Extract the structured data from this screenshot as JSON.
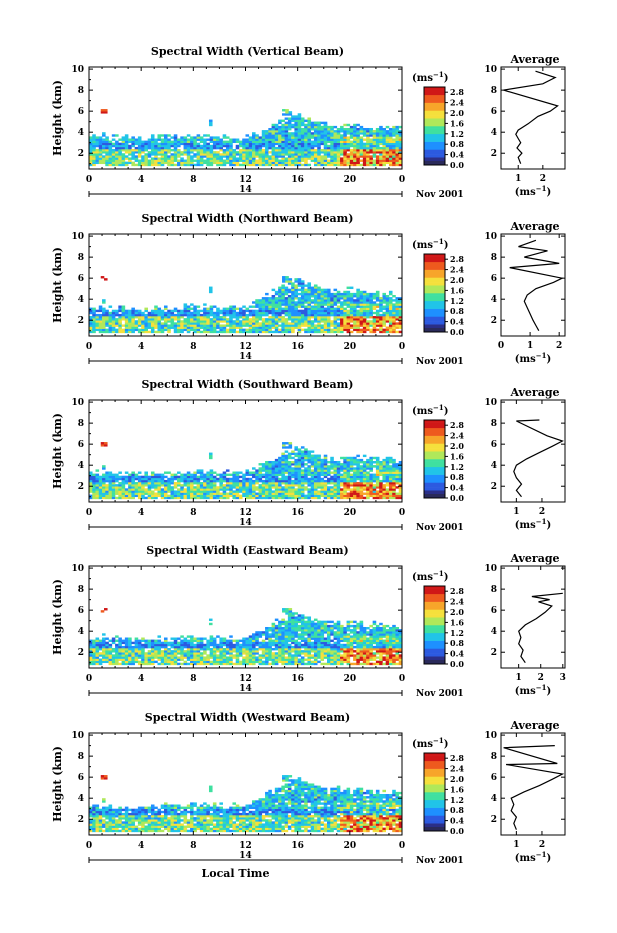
{
  "shared": {
    "time_ticks": [
      0,
      4,
      8,
      12,
      16,
      20,
      0
    ],
    "height_ticks": [
      2,
      4,
      6,
      8,
      10
    ],
    "ylabel": "Height (km)",
    "date_day": "14",
    "date_month": "Nov 2001",
    "xlabel": "Local Time",
    "unit_label": "(ms",
    "unit_exp": "−1",
    "unit_close": ")",
    "avg_title": "Average",
    "colorbar_ticks": [
      "2.8",
      "2.4",
      "2.0",
      "1.6",
      "1.2",
      "0.8",
      "0.4",
      "0.0"
    ],
    "colormap": [
      "#2b2f88",
      "#2c5ae0",
      "#1e90ff",
      "#21c4e8",
      "#3fe0a0",
      "#b0e85a",
      "#f5e03c",
      "#f7a52a",
      "#ee5a1e",
      "#d01717"
    ]
  },
  "chart_data": [
    {
      "type": "heatmap",
      "title": "Spectral Width (Vertical Beam)",
      "xlabel": "Local Time",
      "ylabel": "Height (km)",
      "xlim": [
        0,
        24
      ],
      "ylim": [
        0.5,
        10.2
      ],
      "colorbar_range": [
        0,
        3.0
      ],
      "cloud_top_segments": [
        [
          0,
          3.2
        ],
        [
          4,
          3.0
        ],
        [
          8,
          3.3
        ],
        [
          12,
          3.0
        ],
        [
          14.5,
          4.5
        ],
        [
          16,
          5.3
        ],
        [
          18,
          4.2
        ],
        [
          20,
          4.2
        ],
        [
          24,
          4.0
        ]
      ],
      "avg_profile": {
        "xticks": [
          1,
          2
        ],
        "xlim": [
          0.3,
          2.9
        ],
        "xlabel": "(ms",
        "xlabel_exp": "−1",
        "xlabel_close": ")",
        "points": [
          [
            1.1,
            1.0
          ],
          [
            1.0,
            1.6
          ],
          [
            1.15,
            2.0
          ],
          [
            0.95,
            2.5
          ],
          [
            1.1,
            3.0
          ],
          [
            1.0,
            3.4
          ],
          [
            0.9,
            3.8
          ],
          [
            1.0,
            4.2
          ],
          [
            1.4,
            4.8
          ],
          [
            1.8,
            5.5
          ],
          [
            2.3,
            6.0
          ],
          [
            2.6,
            6.5
          ],
          [
            0.4,
            8.0
          ],
          [
            2.0,
            8.6
          ],
          [
            2.5,
            9.2
          ],
          [
            1.7,
            9.8
          ]
        ]
      }
    },
    {
      "type": "heatmap",
      "title": "Spectral Width (Northward Beam)",
      "xlabel": "Local Time",
      "ylabel": "Height (km)",
      "xlim": [
        0,
        24
      ],
      "ylim": [
        0.5,
        10.2
      ],
      "colorbar_range": [
        0,
        3.0
      ],
      "cloud_top_segments": [
        [
          0,
          2.8
        ],
        [
          4,
          2.7
        ],
        [
          8,
          2.9
        ],
        [
          12,
          2.7
        ],
        [
          14.5,
          4.5
        ],
        [
          16,
          5.5
        ],
        [
          18,
          4.3
        ],
        [
          20,
          4.5
        ],
        [
          24,
          4.0
        ]
      ],
      "avg_profile": {
        "xticks": [
          0,
          1,
          2
        ],
        "xlim": [
          0,
          2.2
        ],
        "xlabel": "(ms",
        "xlabel_exp": "−1",
        "xlabel_close": ")",
        "points": [
          [
            1.3,
            1.0
          ],
          [
            1.2,
            1.5
          ],
          [
            1.1,
            2.0
          ],
          [
            1.0,
            2.6
          ],
          [
            0.9,
            3.2
          ],
          [
            0.8,
            3.8
          ],
          [
            0.9,
            4.4
          ],
          [
            1.2,
            5.0
          ],
          [
            1.8,
            5.6
          ],
          [
            2.1,
            6.0
          ],
          [
            0.3,
            7.0
          ],
          [
            2.0,
            7.4
          ],
          [
            0.8,
            8.0
          ],
          [
            1.6,
            8.6
          ],
          [
            0.6,
            9.0
          ],
          [
            1.2,
            9.6
          ]
        ]
      }
    },
    {
      "type": "heatmap",
      "title": "Spectral Width (Southward Beam)",
      "xlabel": "Local Time",
      "ylabel": "Height (km)",
      "xlim": [
        0,
        24
      ],
      "ylim": [
        0.5,
        10.2
      ],
      "colorbar_range": [
        0,
        3.0
      ],
      "cloud_top_segments": [
        [
          0,
          2.9
        ],
        [
          4,
          2.8
        ],
        [
          8,
          3.0
        ],
        [
          12,
          2.8
        ],
        [
          14.5,
          4.5
        ],
        [
          16,
          5.4
        ],
        [
          18,
          4.2
        ],
        [
          20,
          4.4
        ],
        [
          24,
          4.0
        ]
      ],
      "avg_profile": {
        "xticks": [
          1,
          2
        ],
        "xlim": [
          0.4,
          2.9
        ],
        "xlabel": "(ms",
        "xlabel_exp": "−1",
        "xlabel_close": ")",
        "points": [
          [
            1.2,
            1.0
          ],
          [
            1.0,
            1.6
          ],
          [
            1.2,
            2.2
          ],
          [
            1.0,
            2.8
          ],
          [
            0.9,
            3.4
          ],
          [
            1.0,
            4.0
          ],
          [
            1.4,
            4.6
          ],
          [
            1.9,
            5.2
          ],
          [
            2.4,
            5.8
          ],
          [
            2.8,
            6.3
          ],
          [
            2.2,
            6.8
          ],
          [
            1.0,
            8.2
          ],
          [
            1.9,
            8.3
          ]
        ]
      }
    },
    {
      "type": "heatmap",
      "title": "Spectral Width (Eastward Beam)",
      "xlabel": "Local Time",
      "ylabel": "Height (km)",
      "xlim": [
        0,
        24
      ],
      "ylim": [
        0.5,
        10.2
      ],
      "colorbar_range": [
        0,
        3.0
      ],
      "cloud_top_segments": [
        [
          0,
          2.9
        ],
        [
          4,
          2.8
        ],
        [
          8,
          3.0
        ],
        [
          12,
          2.8
        ],
        [
          14.5,
          4.5
        ],
        [
          16,
          5.4
        ],
        [
          18,
          4.3
        ],
        [
          20,
          4.4
        ],
        [
          24,
          4.0
        ]
      ],
      "avg_profile": {
        "xticks": [
          1,
          2,
          3
        ],
        "xlim": [
          0.2,
          3.1
        ],
        "xlabel": "(ms",
        "xlabel_exp": "−1",
        "xlabel_close": ")",
        "points": [
          [
            1.3,
            1.0
          ],
          [
            1.1,
            1.6
          ],
          [
            1.2,
            2.2
          ],
          [
            1.0,
            2.8
          ],
          [
            1.1,
            3.4
          ],
          [
            1.0,
            4.0
          ],
          [
            1.3,
            4.6
          ],
          [
            1.8,
            5.2
          ],
          [
            2.2,
            5.8
          ],
          [
            2.5,
            6.4
          ],
          [
            1.9,
            6.8
          ],
          [
            2.4,
            7.0
          ],
          [
            1.6,
            7.3
          ],
          [
            3.0,
            7.6
          ]
        ]
      }
    },
    {
      "type": "heatmap",
      "title": "Spectral Width (Westward Beam)",
      "xlabel": "Local Time",
      "ylabel": "Height (km)",
      "xlim": [
        0,
        24
      ],
      "ylim": [
        0.5,
        10.2
      ],
      "colorbar_range": [
        0,
        3.0
      ],
      "cloud_top_segments": [
        [
          0,
          2.8
        ],
        [
          4,
          2.7
        ],
        [
          8,
          3.0
        ],
        [
          12,
          2.8
        ],
        [
          14.5,
          4.5
        ],
        [
          16,
          5.5
        ],
        [
          18,
          4.3
        ],
        [
          20,
          4.5
        ],
        [
          24,
          4.0
        ]
      ],
      "avg_profile": {
        "xticks": [
          1,
          2
        ],
        "xlim": [
          0.4,
          2.9
        ],
        "xlabel": "(ms",
        "xlabel_exp": "−1",
        "xlabel_close": ")",
        "points": [
          [
            1.0,
            1.0
          ],
          [
            0.9,
            1.6
          ],
          [
            1.0,
            2.2
          ],
          [
            0.8,
            2.8
          ],
          [
            0.9,
            3.4
          ],
          [
            0.8,
            4.0
          ],
          [
            1.3,
            4.6
          ],
          [
            1.9,
            5.2
          ],
          [
            2.4,
            5.8
          ],
          [
            2.8,
            6.3
          ],
          [
            0.6,
            7.2
          ],
          [
            2.6,
            7.3
          ],
          [
            0.5,
            8.8
          ],
          [
            2.5,
            9.0
          ]
        ]
      }
    }
  ]
}
